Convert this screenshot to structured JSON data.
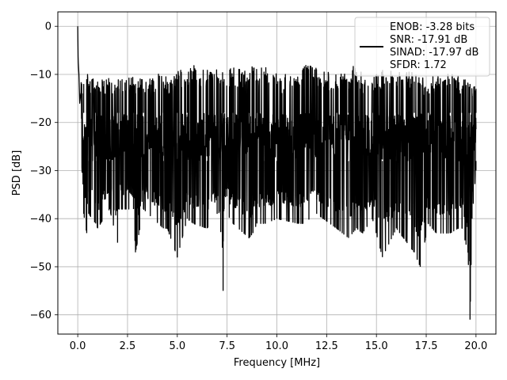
{
  "chart_data": {
    "type": "line",
    "xlabel": "Frequency [MHz]",
    "ylabel": "PSD [dB]",
    "xlim": [
      -1.0,
      21.0
    ],
    "ylim": [
      -64.0,
      3.0
    ],
    "xticks": [
      0.0,
      2.5,
      5.0,
      7.5,
      10.0,
      12.5,
      15.0,
      17.5,
      20.0
    ],
    "xtick_labels": [
      "0.0",
      "2.5",
      "5.0",
      "7.5",
      "10.0",
      "12.5",
      "15.0",
      "17.5",
      "20.0"
    ],
    "yticks": [
      0,
      -10,
      -20,
      -30,
      -40,
      -50,
      -60
    ],
    "ytick_labels": [
      "0",
      "−10",
      "−20",
      "−30",
      "−40",
      "−50",
      "−60"
    ],
    "grid": true,
    "legend_position": "upper-right",
    "legend": [
      "ENOB: -3.28 bits",
      "SNR: -17.91 dB",
      "SINAD: -17.97 dB",
      "SFDR: 1.72"
    ],
    "series": [
      {
        "color": "#000000",
        "band_low": -28.0,
        "band_high": -18.0,
        "x": [
          0.0,
          0.02,
          0.06,
          0.1,
          0.15,
          0.3,
          0.45,
          0.55,
          0.9,
          1.0,
          1.6,
          2.0,
          2.05,
          2.8,
          2.9,
          3.3,
          4.3,
          4.5,
          5.0,
          5.5,
          5.8,
          6.5,
          7.0,
          7.3,
          7.35,
          7.8,
          8.6,
          8.8,
          9.0,
          9.4,
          10.0,
          11.1,
          11.3,
          12.0,
          13.0,
          13.6,
          14.0,
          14.3,
          14.8,
          15.3,
          16.0,
          16.9,
          17.2,
          17.6,
          18.0,
          18.7,
          19.1,
          19.3,
          19.6,
          19.7,
          19.8,
          20.0
        ],
        "peaks": [
          0.0,
          -7.0,
          -10.0,
          -16.0,
          -14.0,
          -12.0,
          -11.0,
          -12.0,
          -13.0,
          -13.5,
          -12.5,
          -12.5,
          -13.0,
          -12.0,
          -12.0,
          -13.0,
          -11.5,
          -12.5,
          -11.0,
          -11.0,
          -10.0,
          -11.0,
          -11.0,
          -11.5,
          -11.0,
          -10.5,
          -11.0,
          -9.5,
          -11.0,
          -10.0,
          -12.0,
          -12.0,
          -10.0,
          -10.5,
          -12.0,
          -11.5,
          -9.5,
          -12.0,
          -12.0,
          -11.0,
          -11.5,
          -11.5,
          -12.0,
          -13.0,
          -11.5,
          -12.0,
          -12.0,
          -13.0,
          -12.0,
          -12.0,
          -14.0,
          -13.0
        ],
        "troughs": [
          0.0,
          -7.0,
          -10.0,
          -16.0,
          -26.0,
          -39.0,
          -43.0,
          -39.0,
          -41.0,
          -42.0,
          -38.0,
          -45.0,
          -38.0,
          -38.0,
          -47.0,
          -38.0,
          -42.0,
          -42.0,
          -48.0,
          -40.0,
          -41.0,
          -42.0,
          -39.0,
          -55.0,
          -38.0,
          -41.0,
          -44.0,
          -43.0,
          -41.0,
          -41.0,
          -40.0,
          -41.0,
          -41.0,
          -39.0,
          -42.0,
          -44.0,
          -42.0,
          -43.0,
          -40.0,
          -48.0,
          -42.0,
          -47.0,
          -50.0,
          -41.0,
          -43.0,
          -43.0,
          -42.0,
          -42.0,
          -47.0,
          -61.0,
          -40.0,
          -30.0
        ]
      }
    ]
  }
}
